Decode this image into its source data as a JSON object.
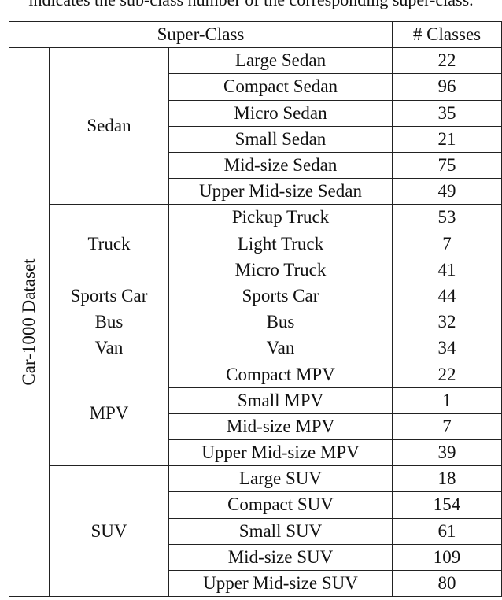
{
  "caption": "indicates the sub-class number of the corresponding super-class.",
  "headers": {
    "super_class": "Super-Class",
    "num_classes": "# Classes"
  },
  "dataset": "Car-1000 Dataset",
  "groups": [
    {
      "name": "Sedan",
      "rows": [
        {
          "sub": "Large Sedan",
          "count": "22"
        },
        {
          "sub": "Compact Sedan",
          "count": "96"
        },
        {
          "sub": "Micro Sedan",
          "count": "35"
        },
        {
          "sub": "Small Sedan",
          "count": "21"
        },
        {
          "sub": "Mid-size Sedan",
          "count": "75"
        },
        {
          "sub": "Upper Mid-size Sedan",
          "count": "49"
        }
      ]
    },
    {
      "name": "Truck",
      "rows": [
        {
          "sub": "Pickup Truck",
          "count": "53"
        },
        {
          "sub": "Light Truck",
          "count": "7"
        },
        {
          "sub": "Micro Truck",
          "count": "41"
        }
      ]
    },
    {
      "name": "Sports Car",
      "rows": [
        {
          "sub": "Sports Car",
          "count": "44"
        }
      ]
    },
    {
      "name": "Bus",
      "rows": [
        {
          "sub": "Bus",
          "count": "32"
        }
      ]
    },
    {
      "name": "Van",
      "rows": [
        {
          "sub": "Van",
          "count": "34"
        }
      ]
    },
    {
      "name": "MPV",
      "rows": [
        {
          "sub": "Compact MPV",
          "count": "22"
        },
        {
          "sub": "Small MPV",
          "count": "1"
        },
        {
          "sub": "Mid-size MPV",
          "count": "7"
        },
        {
          "sub": "Upper Mid-size MPV",
          "count": "39"
        }
      ]
    },
    {
      "name": "SUV",
      "rows": [
        {
          "sub": "Large SUV",
          "count": "18"
        },
        {
          "sub": "Compact SUV",
          "count": "154"
        },
        {
          "sub": "Small SUV",
          "count": "61"
        },
        {
          "sub": "Mid-size SUV",
          "count": "109"
        },
        {
          "sub": "Upper Mid-size SUV",
          "count": "80"
        }
      ]
    }
  ]
}
